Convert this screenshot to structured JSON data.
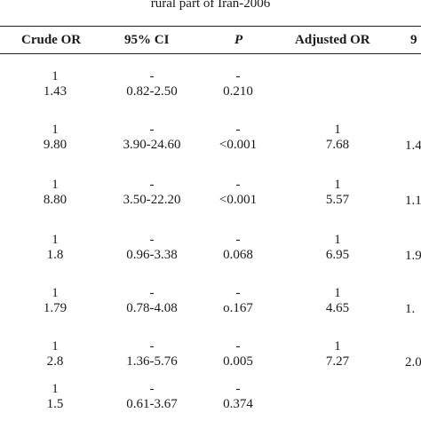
{
  "caption": "rural part of Iran-2006",
  "headers": {
    "crude_or": "Crude OR",
    "ci": "95% CI",
    "p": "P",
    "adjusted_or": "Adjusted OR",
    "ci2_partial": "9"
  },
  "rows": [
    {
      "crude": [
        "1",
        "1.43"
      ],
      "ci": [
        "-",
        "0.82-2.50"
      ],
      "p": [
        "-",
        "0.210"
      ],
      "adj": [
        "",
        ""
      ],
      "ci2": [
        "",
        ""
      ]
    },
    {
      "crude": [
        "1",
        "9.80"
      ],
      "ci": [
        "-",
        "3.90-24.60"
      ],
      "p": [
        "-",
        "<0.001"
      ],
      "adj": [
        "1",
        "7.68"
      ],
      "ci2": [
        "",
        "1.4"
      ]
    },
    {
      "crude": [
        "1",
        "8.80"
      ],
      "ci": [
        "-",
        "3.50-22.20"
      ],
      "p": [
        "-",
        "<0.001"
      ],
      "adj": [
        "1",
        "5.57"
      ],
      "ci2": [
        "",
        "1.1"
      ]
    },
    {
      "crude": [
        "1",
        "1.8"
      ],
      "ci": [
        "-",
        "0.96-3.38"
      ],
      "p": [
        "-",
        "0.068"
      ],
      "adj": [
        "1",
        "6.95"
      ],
      "ci2": [
        "",
        "1.9"
      ]
    },
    {
      "crude": [
        "1",
        "1.79"
      ],
      "ci": [
        "-",
        "0.78-4.08"
      ],
      "p": [
        "-",
        "o.167"
      ],
      "adj": [
        "1",
        "4.65"
      ],
      "ci2": [
        "",
        "1."
      ]
    },
    {
      "crude": [
        "1",
        "2.8"
      ],
      "ci": [
        "-",
        "1.36-5.76"
      ],
      "p": [
        "-",
        "0.005"
      ],
      "adj": [
        "1",
        "7.27"
      ],
      "ci2": [
        "",
        "2.0"
      ]
    },
    {
      "crude": [
        "1",
        "1.5"
      ],
      "ci": [
        "-",
        "0.61-3.67"
      ],
      "p": [
        "-",
        "0.374"
      ],
      "adj": [
        "",
        ""
      ],
      "ci2": [
        "",
        ""
      ]
    }
  ]
}
